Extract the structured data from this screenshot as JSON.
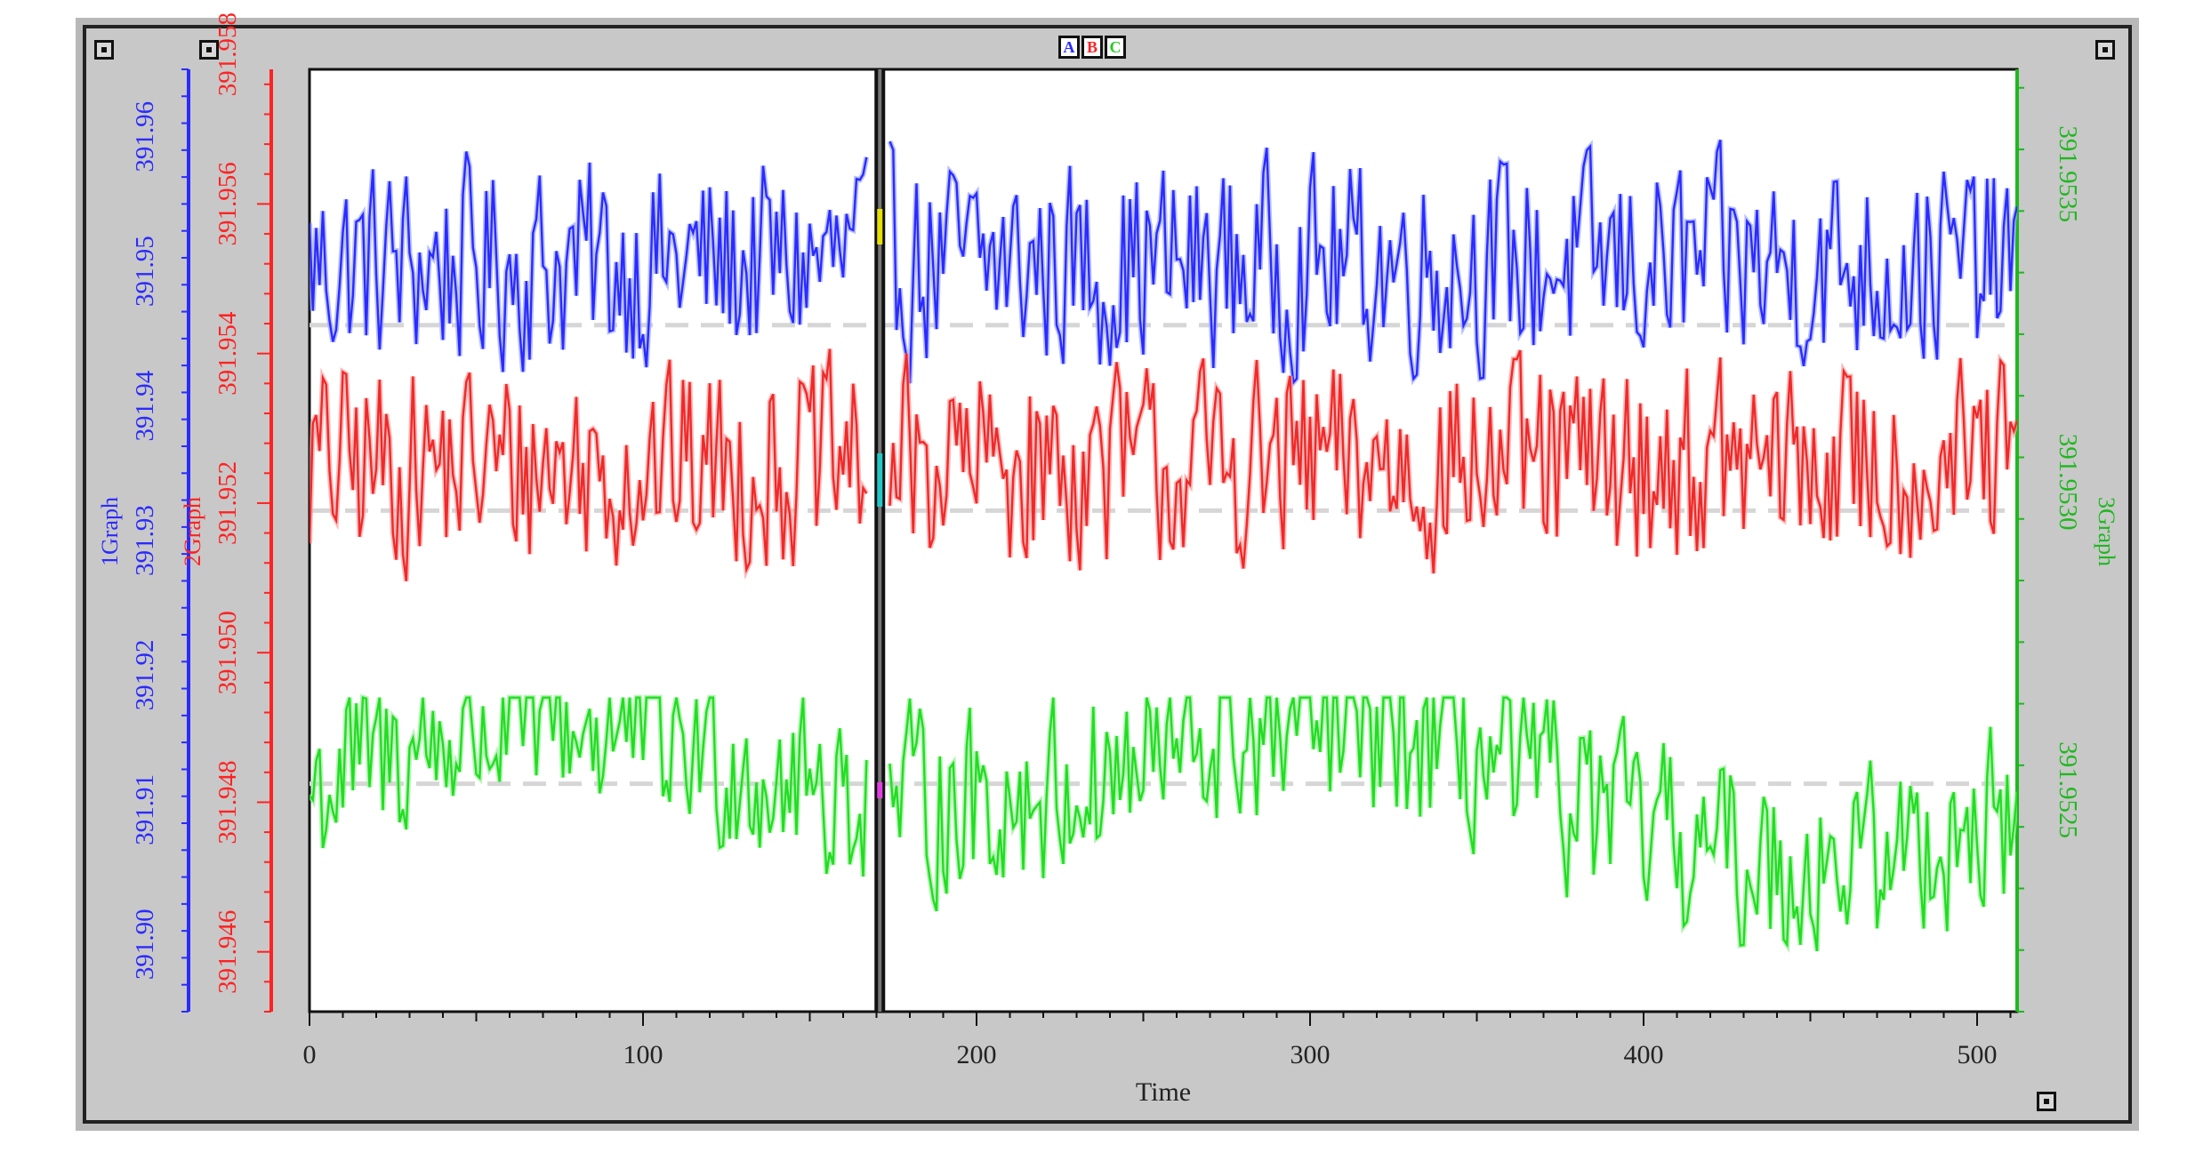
{
  "window": {
    "legend_buttons": [
      {
        "label": "A",
        "color": "#2b2bff"
      },
      {
        "label": "B",
        "color": "#ff2222"
      },
      {
        "label": "C",
        "color": "#22cc22"
      }
    ],
    "frame_color": "#b8b8b8",
    "plot_bg": "#ffffff"
  },
  "chart_data": {
    "type": "line",
    "title": "",
    "xlabel": "Time",
    "xlim": [
      0,
      512
    ],
    "x_ticks": [
      "0",
      "100",
      "200",
      "300",
      "400",
      "500"
    ],
    "cursor_x": 171,
    "grid": false,
    "axes": [
      {
        "id": "axis-1",
        "side": "left-outer",
        "color": "#2b2bff",
        "label": "1Graph",
        "ylim": [
          391.895,
          391.965
        ],
        "ticks": [
          "391.90",
          "391.91",
          "391.92",
          "391.93",
          "391.94",
          "391.95",
          "391.96"
        ]
      },
      {
        "id": "axis-2",
        "side": "left-inner",
        "color": "#ff2222",
        "label": "2Graph",
        "ylim": [
          391.9452,
          391.9578
        ],
        "ticks": [
          "391.946",
          "391.948",
          "391.950",
          "391.952",
          "391.954",
          "391.956",
          "391.958"
        ]
      },
      {
        "id": "axis-3",
        "side": "right",
        "color": "#1fb81f",
        "label": "3Graph",
        "ylim": [
          391.95214,
          391.95367
        ],
        "ticks": [
          "391.9525",
          "391.9530",
          "391.9535"
        ]
      }
    ],
    "series": [
      {
        "color": "#2b2bff",
        "light_color": "#9aa6ff",
        "axis": "axis-1",
        "mean": 391.9505,
        "reference": 391.946,
        "min": 391.938,
        "max": 391.9605
      },
      {
        "color": "#ee2a2a",
        "light_color": "#ff9a9a",
        "axis": "axis-2",
        "mean": 391.9525,
        "reference": 391.9519,
        "min": 391.9505,
        "max": 391.9545
      },
      {
        "color": "#22dd22",
        "light_color": "#99f099",
        "axis": "axis-3",
        "mean": 391.9525,
        "reference": 391.95251,
        "min": 391.95221,
        "max": 391.95265
      }
    ]
  }
}
